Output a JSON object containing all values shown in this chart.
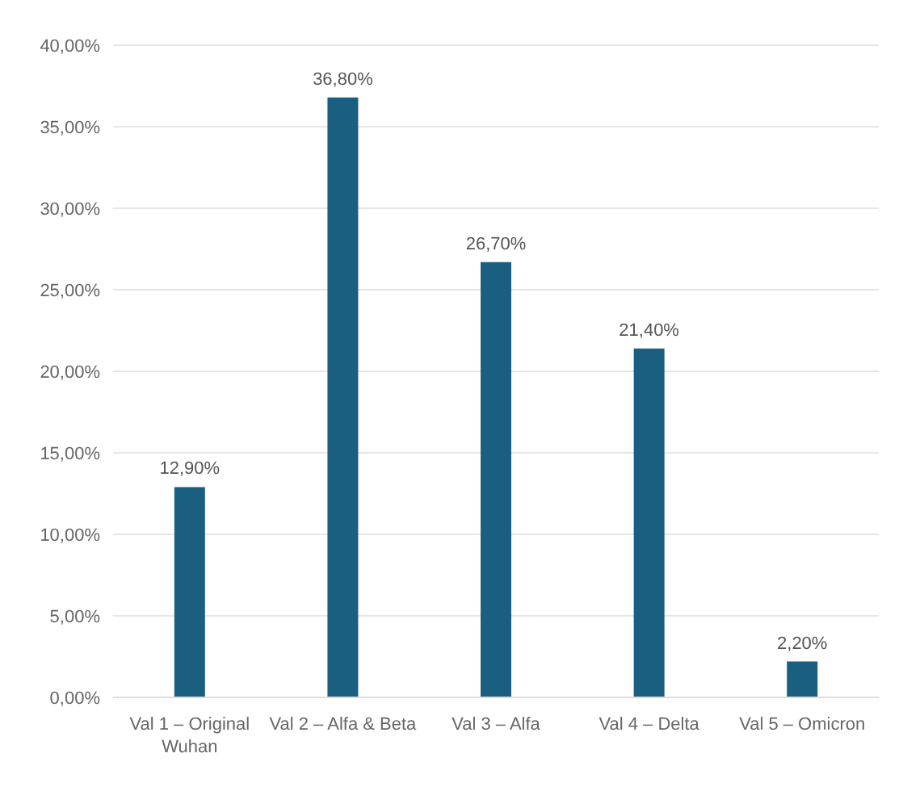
{
  "chart_data": {
    "type": "bar",
    "categories": [
      "Val 1 – Original Wuhan",
      "Val 2 – Alfa & Beta",
      "Val 3 – Alfa",
      "Val 4 – Delta",
      "Val 5 – Omicron"
    ],
    "values": [
      12.9,
      36.8,
      26.7,
      21.4,
      2.2
    ],
    "value_labels": [
      "12,90%",
      "36,80%",
      "26,70%",
      "21,40%",
      "2,20%"
    ],
    "color": "#1a5e80",
    "ylim": [
      0,
      40
    ],
    "yticks": [
      {
        "value": 0,
        "label": "0,00%"
      },
      {
        "value": 5,
        "label": "5,00%"
      },
      {
        "value": 10,
        "label": "10,00%"
      },
      {
        "value": 15,
        "label": "15,00%"
      },
      {
        "value": 20,
        "label": "20,00%"
      },
      {
        "value": 25,
        "label": "25,00%"
      },
      {
        "value": 30,
        "label": "30,00%"
      },
      {
        "value": 35,
        "label": "35,00%"
      },
      {
        "value": 40,
        "label": "40,00%"
      }
    ],
    "grid": "y"
  }
}
